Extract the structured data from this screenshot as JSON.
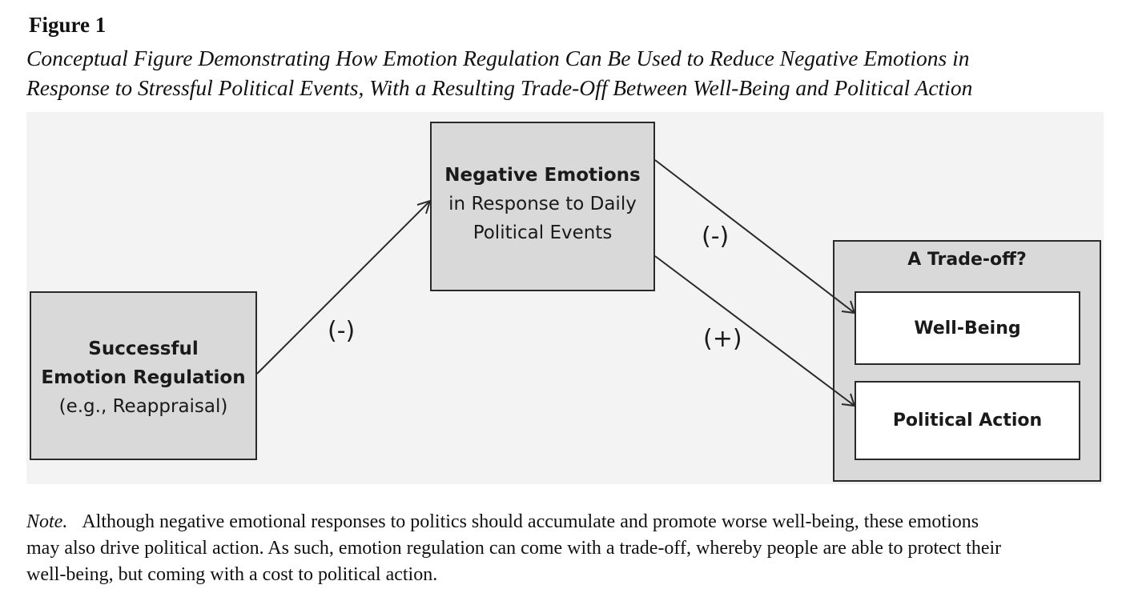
{
  "figure": {
    "label": "Figure 1",
    "caption_line1": "Conceptual Figure Demonstrating How Emotion Regulation Can Be Used to Reduce Negative Emotions in",
    "caption_line2": "Response to Stressful Political Events, With a Resulting Trade-Off Between Well-Being and Political Action"
  },
  "diagram": {
    "regulation_box": {
      "line1": "Successful",
      "line2": "Emotion Regulation",
      "line3": "(e.g., Reappraisal)"
    },
    "emotions_box": {
      "line1": "Negative Emotions",
      "line2": "in Response to Daily",
      "line3": "Political Events"
    },
    "tradeoff": {
      "title": "A Trade-off?",
      "well_being": "Well-Being",
      "political_action": "Political Action"
    },
    "signs": {
      "regulation_to_emotions": "(-)",
      "emotions_to_wellbeing": "(-)",
      "emotions_to_action": "(+)"
    }
  },
  "note": {
    "label": "Note.",
    "line1": "Although negative emotional responses to politics should accumulate and promote worse well-being, these emotions",
    "line2": "may also drive political action. As such, emotion regulation can come with a trade-off, whereby people are able to protect their",
    "line3": "well-being, but coming with a cost to political action."
  }
}
